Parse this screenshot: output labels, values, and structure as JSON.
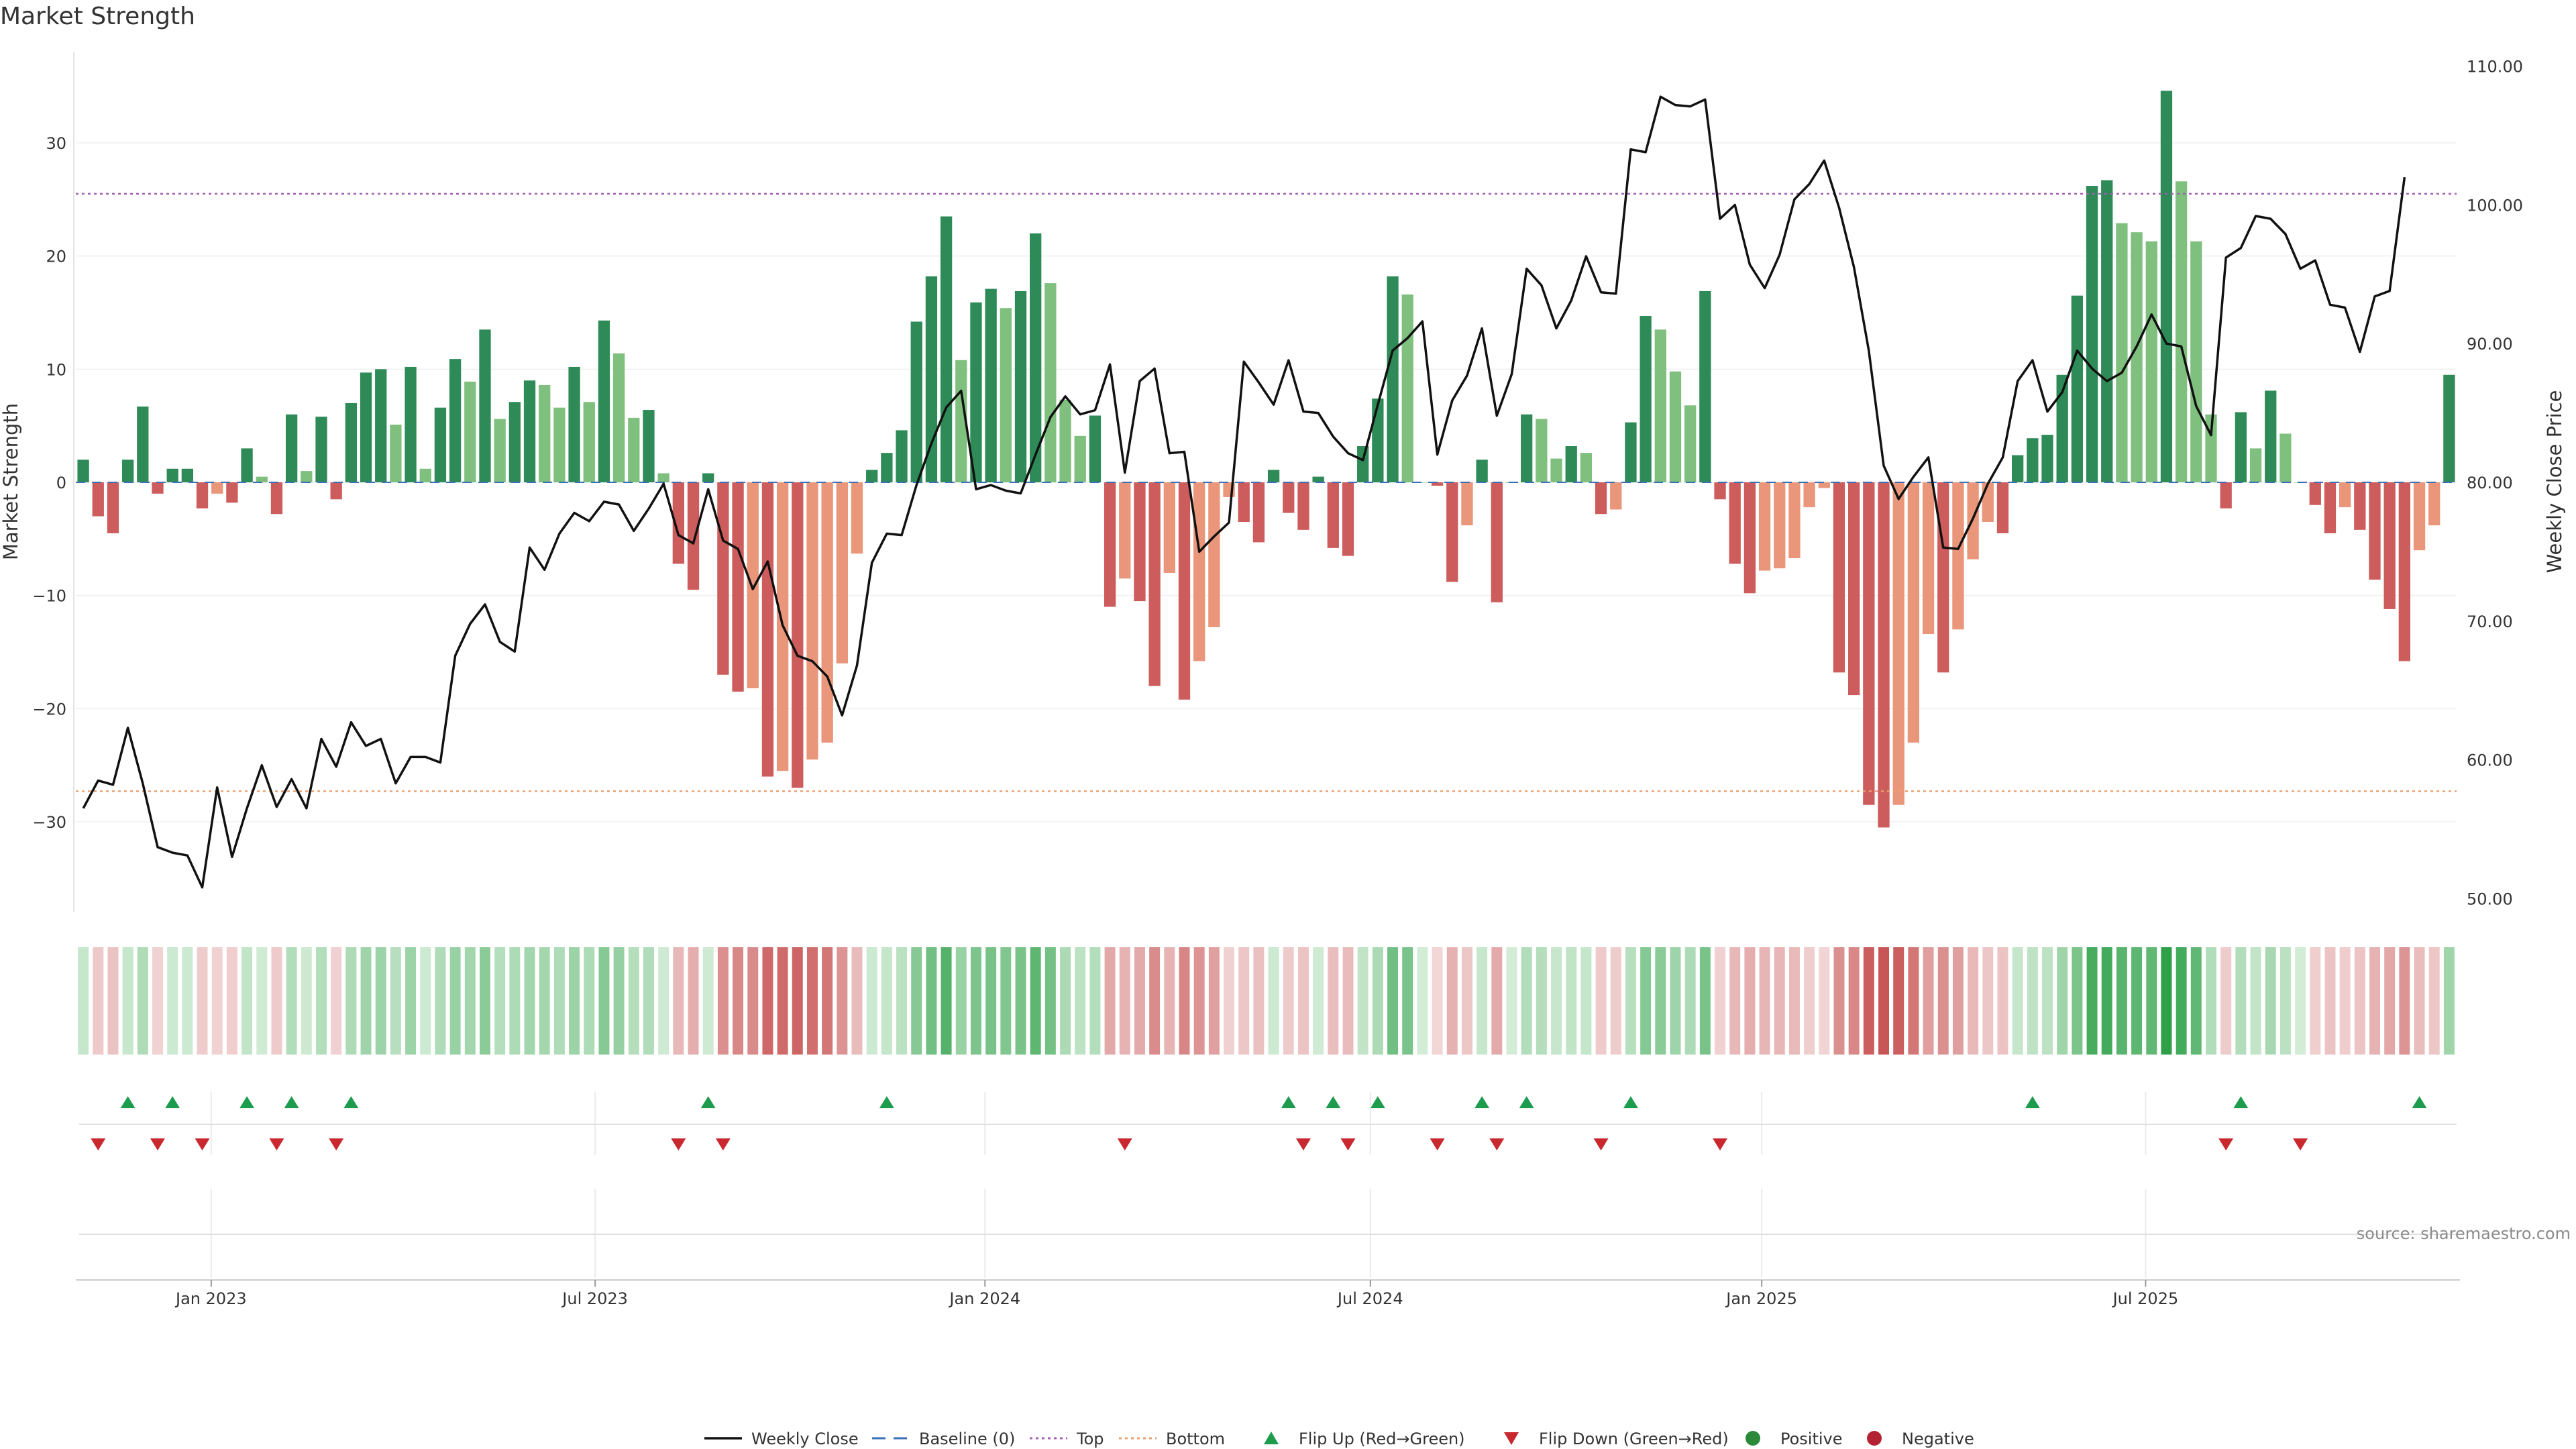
{
  "chart_data": {
    "type": "bar",
    "title": "Market Strength",
    "ylabel_left": "Market Strength",
    "ylabel_right": "Weekly Close Price",
    "source": "source: sharemaestro.com",
    "left_axis": {
      "range": [
        -38,
        38
      ],
      "ticks": [
        30,
        20,
        10,
        0,
        -10,
        -20,
        -30
      ],
      "tick_labels": [
        "30",
        "20",
        "10",
        "0",
        "−10",
        "−20",
        "−30"
      ]
    },
    "right_axis": {
      "range": [
        49,
        111
      ],
      "ticks": [
        110,
        100,
        90,
        80,
        70,
        60,
        50
      ],
      "tick_labels": [
        "110.00",
        "100.00",
        "90.00",
        "80.00",
        "70.00",
        "60.00",
        "50.00"
      ]
    },
    "top_level": 25.5,
    "bottom_level": -27.3,
    "x_ticks": [
      {
        "label": "Jan 2023",
        "week": 8.6
      },
      {
        "label": "Jul 2023",
        "week": 34.4
      },
      {
        "label": "Jan 2024",
        "week": 60.6
      },
      {
        "label": "Jul 2024",
        "week": 86.5
      },
      {
        "label": "Jan 2025",
        "week": 112.8
      },
      {
        "label": "Jul 2025",
        "week": 138.6
      }
    ],
    "strength": [
      2,
      -3,
      -4.5,
      2,
      6.7,
      -1,
      1.2,
      1.2,
      -2.3,
      -1,
      -1.8,
      3,
      0.5,
      -2.8,
      6,
      1,
      5.8,
      -1.5,
      7,
      9.7,
      10,
      5.1,
      10.2,
      1.2,
      6.6,
      10.9,
      8.9,
      13.5,
      5.6,
      7.1,
      9,
      8.6,
      6.6,
      10.2,
      7.1,
      14.3,
      11.4,
      5.7,
      6.4,
      0.8,
      -7.2,
      -9.5,
      0.8,
      -17,
      -18.5,
      -18.2,
      -26,
      -25.5,
      -27,
      -24.5,
      -23,
      -16,
      -6.3,
      1.1,
      2.6,
      4.6,
      14.2,
      18.2,
      23.5,
      10.8,
      15.9,
      17.1,
      15.4,
      16.9,
      22,
      17.6,
      7.3,
      4.1,
      5.9,
      -11,
      -8.5,
      -10.5,
      -18,
      -8,
      -19.2,
      -15.8,
      -12.8,
      -1.3,
      -3.5,
      -5.3,
      1.1,
      -2.7,
      -4.2,
      0.5,
      -5.8,
      -6.5,
      3.2,
      7.4,
      18.2,
      16.6,
      0,
      -0.3,
      -8.8,
      -3.8,
      2,
      -10.6,
      0,
      6,
      5.6,
      2.1,
      3.2,
      2.6,
      -2.8,
      -2.4,
      5.3,
      14.7,
      13.5,
      9.8,
      6.8,
      16.9,
      -1.5,
      -7.2,
      -9.8,
      -7.8,
      -7.6,
      -6.7,
      -2.2,
      -0.5,
      -16.8,
      -18.8,
      -28.5,
      -30.5,
      -28.5,
      -23,
      -13.4,
      -16.8,
      -13,
      -6.8,
      -3.5,
      -4.5,
      2.4,
      3.9,
      4.2,
      9.5,
      16.5,
      26.2,
      26.7,
      22.9,
      22.1,
      21.3,
      34.6,
      26.6,
      21.3,
      6,
      -2.3,
      6.2,
      3,
      8.1,
      4.3,
      0,
      -2,
      -4.5,
      -2.2,
      -4.2,
      -8.6,
      -11.2,
      -15.8,
      -6,
      -3.8,
      9.5
    ],
    "close": [
      56.5,
      58.5,
      58.2,
      62.3,
      58.3,
      53.7,
      53.3,
      53.1,
      50.8,
      58.0,
      53.0,
      56.5,
      59.6,
      56.6,
      58.6,
      56.5,
      61.5,
      59.5,
      62.7,
      61.0,
      61.5,
      58.3,
      60.2,
      60.2,
      59.8,
      67.5,
      69.8,
      71.2,
      68.5,
      67.8,
      75.3,
      73.7,
      76.3,
      77.8,
      77.2,
      78.6,
      78.4,
      76.5,
      78.1,
      79.9,
      76.2,
      75.6,
      79.5,
      75.8,
      75.2,
      72.3,
      74.3,
      69.7,
      67.5,
      67.1,
      66.0,
      63.2,
      66.8,
      74.2,
      76.3,
      76.2,
      79.8,
      82.8,
      85.4,
      86.6,
      79.5,
      79.8,
      79.4,
      79.2,
      82.0,
      84.7,
      86.2,
      84.9,
      85.2,
      88.5,
      80.7,
      87.3,
      88.2,
      82.1,
      82.2,
      75.0,
      76.1,
      77.1,
      88.7,
      87.2,
      85.6,
      88.8,
      85.1,
      85.0,
      83.3,
      82.1,
      81.6,
      85.6,
      89.5,
      90.4,
      91.6,
      82.0,
      85.9,
      87.7,
      91.1,
      84.8,
      87.8,
      95.4,
      94.2,
      91.1,
      93.1,
      96.3,
      93.7,
      93.6,
      104.0,
      103.8,
      107.8,
      107.2,
      107.1,
      107.6,
      99.0,
      100.0,
      95.7,
      94.0,
      96.4,
      100.4,
      101.5,
      103.2,
      99.8,
      95.5,
      89.5,
      81.2,
      78.8,
      80.4,
      81.8,
      75.3,
      75.2,
      77.4,
      79.9,
      81.8,
      87.3,
      88.8,
      85.1,
      86.5,
      89.5,
      88.2,
      87.3,
      87.9,
      89.8,
      92.1,
      90.0,
      89.8,
      85.5,
      83.4,
      96.2,
      96.9,
      99.2,
      99.0,
      97.9,
      95.4,
      96.0,
      92.8,
      92.6,
      89.4,
      93.4,
      93.8,
      102.0
    ],
    "flips_up_weeks": [
      3,
      6,
      11,
      14,
      18,
      42,
      54,
      81,
      84,
      87,
      94,
      97,
      104,
      131,
      145,
      157
    ],
    "flips_down_weeks": [
      1,
      5,
      8,
      13,
      17,
      40,
      43,
      70,
      82,
      85,
      91,
      95,
      102,
      110,
      144,
      149
    ],
    "legend": [
      {
        "label": "Weekly Close",
        "kind": "line",
        "color": "#111111"
      },
      {
        "label": "Baseline (0)",
        "kind": "dash",
        "color": "#3b6fb6"
      },
      {
        "label": "Top",
        "kind": "dot",
        "color": "#a060b0"
      },
      {
        "label": "Bottom",
        "kind": "dot",
        "color": "#e8a070"
      },
      {
        "label": "Flip Up (Red→Green)",
        "kind": "tri-up",
        "color": "#1e9c4e"
      },
      {
        "label": "Flip Down (Green→Red)",
        "kind": "tri-down",
        "color": "#c8282e"
      },
      {
        "label": "Positive",
        "kind": "circle",
        "color": "#2a8a3a"
      },
      {
        "label": "Negative",
        "kind": "circle",
        "color": "#b22232"
      }
    ],
    "colors": {
      "pos_rising": "#2e8b57",
      "pos_falling": "#7fc07f",
      "neg_falling": "#cd5c5c",
      "neg_rising": "#e9967a"
    }
  }
}
